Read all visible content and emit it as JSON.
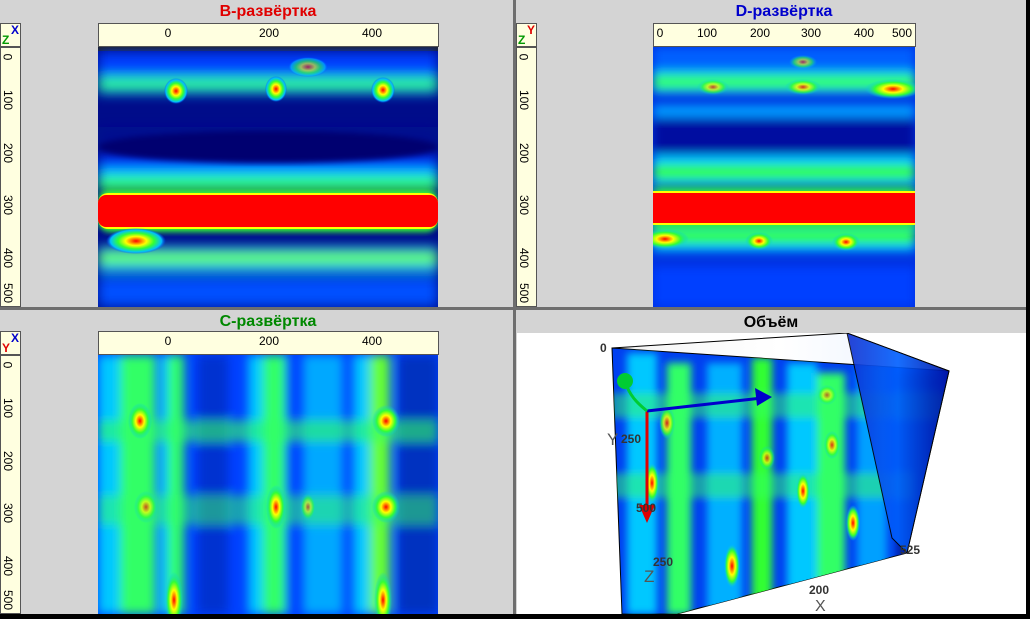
{
  "panels": {
    "b_scan": {
      "title": "B-развёртка",
      "title_color": "#e00000",
      "top_ticks": [
        "0",
        "200",
        "400"
      ],
      "left_ticks": [
        "0",
        "100",
        "200",
        "300",
        "400",
        "500"
      ],
      "badge_top": "X",
      "badge_bottom": "Z",
      "badge_top_color": "#0000cc",
      "badge_bottom_color": "#009900"
    },
    "d_scan": {
      "title": "D-развёртка",
      "title_color": "#0000cc",
      "top_ticks": [
        "0",
        "100",
        "200",
        "300",
        "400",
        "500"
      ],
      "left_ticks": [
        "0",
        "100",
        "200",
        "300",
        "400",
        "500"
      ],
      "badge_top": "Y",
      "badge_bottom": "Z",
      "badge_top_color": "#e00000",
      "badge_bottom_color": "#009900"
    },
    "c_scan": {
      "title": "C-развёртка",
      "title_color": "#008800",
      "top_ticks": [
        "0",
        "200",
        "400"
      ],
      "left_ticks": [
        "0",
        "100",
        "200",
        "300",
        "400",
        "500"
      ],
      "badge_top": "X",
      "badge_bottom": "Y",
      "badge_top_color": "#0000cc",
      "badge_bottom_color": "#e00000"
    },
    "volume": {
      "title": "Объём",
      "title_color": "#000000",
      "labels": {
        "origin": "0",
        "y_axis": "Y",
        "y_250": "250",
        "y_500": "500",
        "z_axis": "Z",
        "z_250": "250",
        "x_200": "200",
        "x_525": "525",
        "x_axis": "X"
      }
    }
  },
  "colors": {
    "background": "#d4d4d4",
    "ruler": "#ffffe0",
    "scan_deep_blue": "#00008b",
    "scan_red": "#ff0000"
  }
}
